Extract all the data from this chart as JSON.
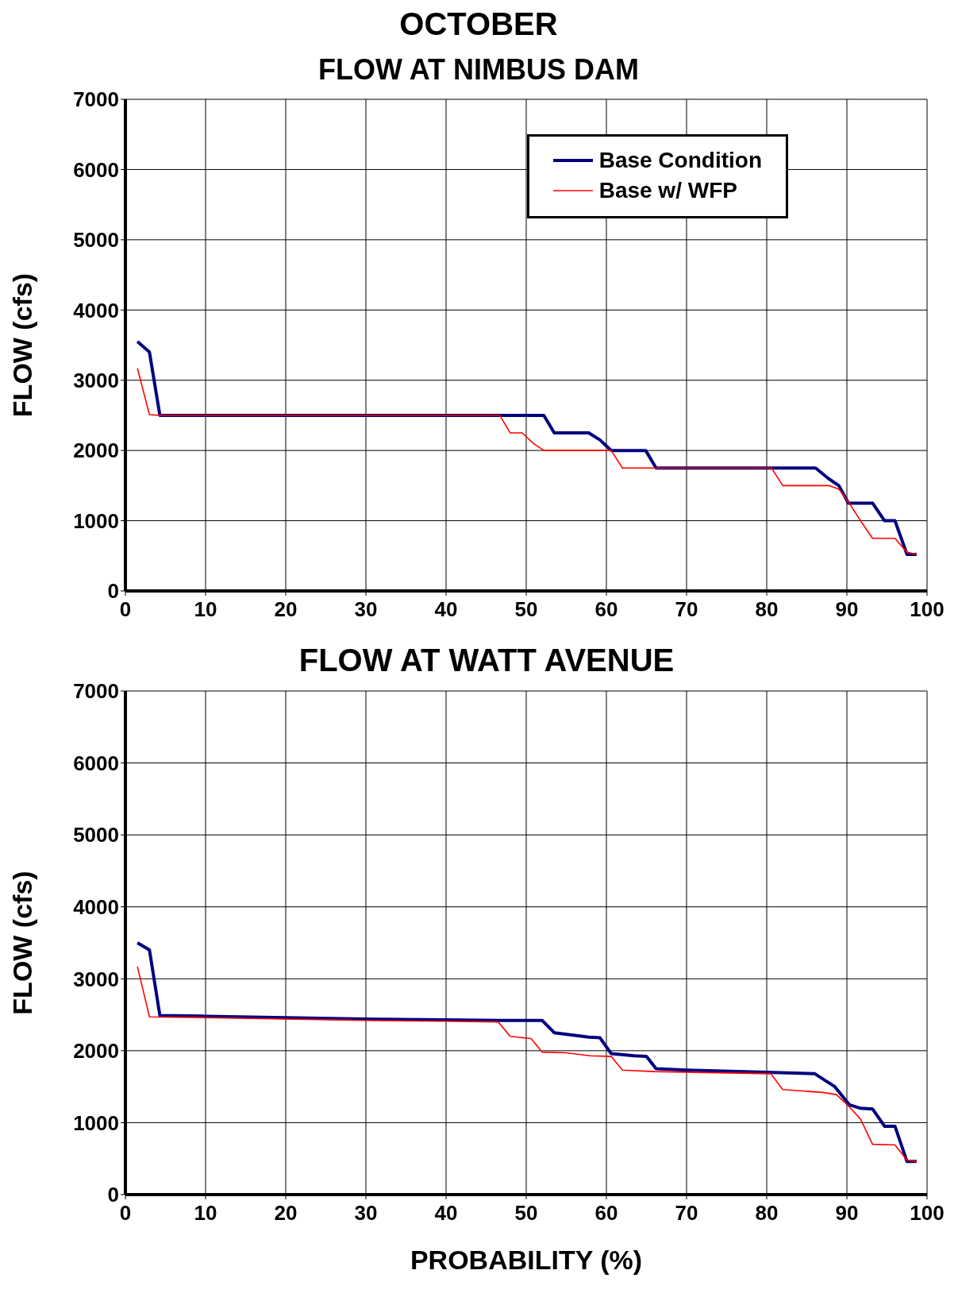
{
  "chart_data": [
    {
      "type": "line",
      "title": "OCTOBER",
      "subtitle": "FLOW AT NIMBUS DAM",
      "ylabel": "FLOW (cfs)",
      "xlim": [
        0,
        100
      ],
      "xticks": [
        0,
        10,
        20,
        30,
        40,
        50,
        60,
        70,
        80,
        90,
        100
      ],
      "ylim": [
        0,
        7000
      ],
      "yticks": [
        0,
        1000,
        2000,
        3000,
        4000,
        5000,
        6000,
        7000
      ],
      "grid": true,
      "legend": "top right",
      "marker": "none",
      "line_style": "solid",
      "series": [
        {
          "name": "Base Condition",
          "color": "#000080",
          "x": [
            1.5,
            3,
            4.3,
            52.2,
            53.5,
            57.8,
            59.2,
            60.6,
            64.9,
            66.2,
            86.1,
            87.7,
            89,
            90.2,
            93.2,
            94.7,
            96,
            97.5,
            98.7
          ],
          "values": [
            3550,
            3400,
            2500,
            2500,
            2250,
            2250,
            2150,
            2000,
            2000,
            1750,
            1750,
            1600,
            1500,
            1250,
            1250,
            1000,
            1000,
            520,
            520
          ]
        },
        {
          "name": "Base w/ WFP",
          "color": "#ff0000",
          "x": [
            1.5,
            3,
            4.3,
            46.7,
            48,
            49.5,
            50.9,
            52.2,
            60.6,
            62,
            80.6,
            82,
            87.7,
            89,
            90.3,
            91.7,
            93.2,
            96,
            97.5,
            98.7
          ],
          "values": [
            3170,
            2510,
            2500,
            2500,
            2250,
            2250,
            2100,
            2000,
            2000,
            1750,
            1750,
            1500,
            1500,
            1450,
            1250,
            1000,
            750,
            750,
            550,
            520
          ]
        }
      ]
    },
    {
      "type": "line",
      "title": "FLOW AT WATT AVENUE",
      "xlabel": "PROBABILITY (%)",
      "ylabel": "FLOW (cfs)",
      "xlim": [
        0,
        100
      ],
      "xticks": [
        0,
        10,
        20,
        30,
        40,
        50,
        60,
        70,
        80,
        90,
        100
      ],
      "ylim": [
        0,
        7000
      ],
      "yticks": [
        0,
        1000,
        2000,
        3000,
        4000,
        5000,
        6000,
        7000
      ],
      "grid": true,
      "marker": "none",
      "line_style": "solid",
      "series": [
        {
          "color": "#000080",
          "x": [
            1.5,
            3,
            4.3,
            10,
            20,
            30,
            40,
            47,
            52,
            53.5,
            57.8,
            59.2,
            60.6,
            63.5,
            65,
            66.2,
            70,
            80,
            86,
            88.5,
            90.3,
            91.7,
            93.2,
            94.7,
            96,
            97.5,
            98.7
          ],
          "values": [
            3500,
            3400,
            2490,
            2480,
            2460,
            2440,
            2430,
            2420,
            2420,
            2250,
            2190,
            2180,
            1960,
            1930,
            1920,
            1750,
            1730,
            1700,
            1680,
            1500,
            1250,
            1200,
            1190,
            950,
            950,
            460,
            460
          ]
        },
        {
          "color": "#ff0000",
          "x": [
            1.5,
            3,
            10,
            20,
            30,
            40,
            46.5,
            48,
            50.6,
            52,
            55,
            58,
            60.6,
            62,
            66,
            80.5,
            82,
            87,
            88.7,
            90.3,
            91.7,
            93.2,
            96,
            97.5,
            98.7
          ],
          "values": [
            3170,
            2470,
            2460,
            2440,
            2420,
            2410,
            2400,
            2200,
            2170,
            1980,
            1970,
            1930,
            1920,
            1730,
            1710,
            1680,
            1460,
            1420,
            1390,
            1220,
            1050,
            700,
            690,
            480,
            460
          ]
        }
      ]
    }
  ]
}
